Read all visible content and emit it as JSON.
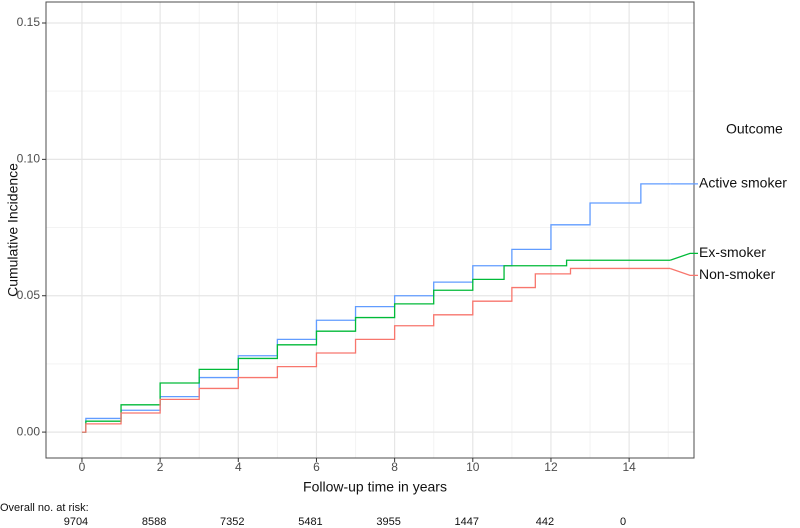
{
  "chart_data": {
    "type": "step",
    "y_label": "Cumulative Incidence",
    "x_label": "Follow-up time in years",
    "legend_title": "Outcome",
    "xlim": [
      -0.92,
      15.66
    ],
    "ylim": [
      -0.0095,
      0.1577
    ],
    "xticks": [
      0,
      2,
      4,
      6,
      8,
      10,
      12,
      14
    ],
    "yticks": [
      {
        "value": 0,
        "label": "0.00"
      },
      0.05,
      {
        "value": 0.1,
        "label": "0.10"
      },
      0.15
    ],
    "x_minor_ticks": [
      1,
      3,
      5,
      7,
      9,
      11,
      13,
      15
    ],
    "y_minor_ticks": [
      0.025,
      0.075,
      0.125
    ],
    "grid": true,
    "series": [
      {
        "name": "Active smoker",
        "color": "#619cff",
        "x": [
          0,
          0.1,
          1,
          2,
          3,
          4,
          5,
          6,
          7,
          8,
          9,
          10,
          11,
          12,
          13,
          14.3,
          15.05
        ],
        "values": [
          0,
          0.005,
          0.008,
          0.013,
          0.02,
          0.028,
          0.034,
          0.041,
          0.046,
          0.05,
          0.055,
          0.061,
          0.067,
          0.076,
          0.084,
          0.091,
          0.091
        ]
      },
      {
        "name": "Ex-smoker",
        "color": "#00ba38",
        "x": [
          0,
          0.1,
          1,
          2,
          3,
          4,
          5,
          6,
          7,
          8,
          9,
          10,
          10.8,
          12.4,
          15.05
        ],
        "values": [
          0,
          0.004,
          0.01,
          0.018,
          0.023,
          0.027,
          0.032,
          0.037,
          0.042,
          0.047,
          0.052,
          0.056,
          0.061,
          0.063,
          0.063
        ]
      },
      {
        "name": "Non-smoker",
        "color": "#f8766d",
        "x": [
          0,
          0.1,
          1,
          2,
          3,
          4,
          5,
          6,
          7,
          8,
          9,
          10,
          11,
          11.6,
          12.5,
          15.05
        ],
        "values": [
          0,
          0.003,
          0.007,
          0.012,
          0.016,
          0.02,
          0.024,
          0.029,
          0.034,
          0.039,
          0.043,
          0.048,
          0.053,
          0.058,
          0.06,
          0.06
        ]
      }
    ],
    "risk_table": {
      "label": "Overall no. at risk:",
      "counts": [
        9704,
        8588,
        7352,
        5481,
        3955,
        1447,
        442,
        0
      ]
    }
  }
}
